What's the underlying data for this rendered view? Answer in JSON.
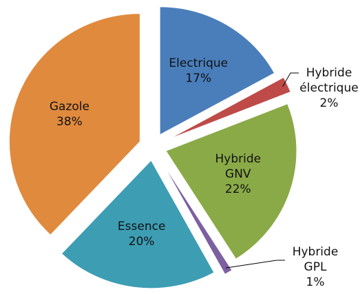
{
  "chart_data": {
    "type": "pie",
    "categories": [
      "Electrique",
      "Hybride électrique",
      "Hybride GNV",
      "Hybride GPL",
      "Essence",
      "Gazole"
    ],
    "values": [
      17,
      2,
      22,
      1,
      20,
      38
    ],
    "value_labels": [
      "17%",
      "2%",
      "22%",
      "1%",
      "20%",
      "38%"
    ],
    "colors": [
      "#4a7ebb",
      "#be4b48",
      "#8aaa48",
      "#7d60a0",
      "#3d9db3",
      "#e08a3e"
    ]
  }
}
